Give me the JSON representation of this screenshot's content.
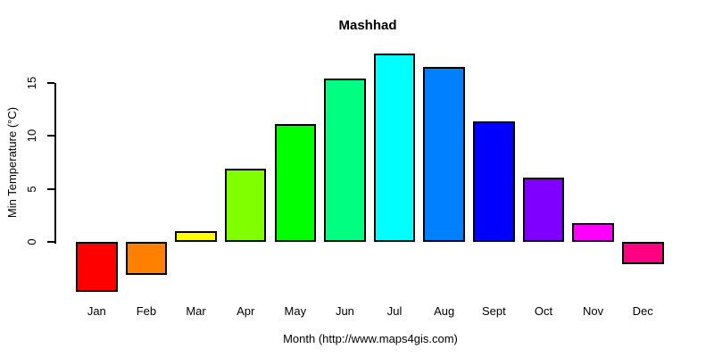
{
  "page": {
    "background": "#ffffff"
  },
  "chart_data": {
    "type": "bar",
    "title": "Mashhad",
    "xlabel": "Month (http://www.maps4gis.com)",
    "ylabel": "Min Temperature (°C)",
    "categories": [
      "Jan",
      "Feb",
      "Mar",
      "Apr",
      "May",
      "Jun",
      "Jul",
      "Aug",
      "Sept",
      "Oct",
      "Nov",
      "Dec"
    ],
    "values": [
      -4.7,
      -3.1,
      1,
      6.9,
      11.1,
      15.4,
      17.8,
      16.5,
      11.4,
      6.1,
      1.8,
      -2.1
    ],
    "bar_colors": [
      "#FF0000",
      "#FF8000",
      "#FFFF00",
      "#80FF00",
      "#00FF00",
      "#00FF80",
      "#00FFFF",
      "#0080FF",
      "#0000FF",
      "#8000FF",
      "#FF00FF",
      "#FF0080"
    ],
    "yticks": [
      0,
      5,
      10,
      15
    ],
    "ylim": [
      -5.8,
      18.1
    ],
    "grid": false,
    "legend_position": "none",
    "axis_color": "#000000",
    "text_color": "#000000",
    "bar_border_color": "#000000"
  }
}
